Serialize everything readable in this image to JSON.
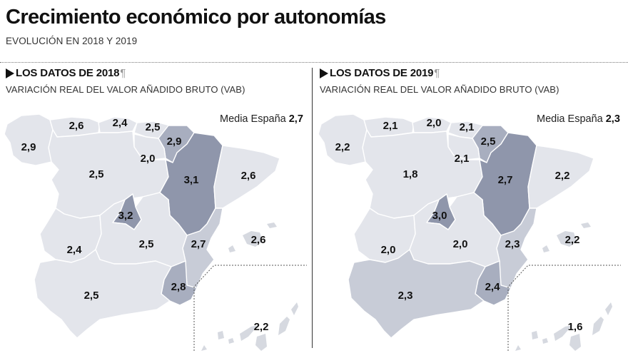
{
  "header": {
    "title": "Crecimiento económico por autonomías",
    "subtitle": "EVOLUCIÓN EN 2018 Y 2019"
  },
  "colors": {
    "shade_1": "#e3e5eb",
    "shade_2": "#c8ccd7",
    "shade_3": "#a8aebf",
    "shade_4": "#8f96ab"
  },
  "panels": [
    {
      "year": "2018",
      "title": "LOS DATOS DE 2018",
      "pilcrow": "¶",
      "subtitle": "VARIACIÓN REAL DEL VALOR AÑADIDO BRUTO (VAB)",
      "media_label": "Media España",
      "media_value": "2,7",
      "regions": {
        "galicia": "2,9",
        "asturias": "2,6",
        "cantabria": "2,4",
        "pais_vasco": "2,5",
        "navarra": "2,9",
        "la_rioja": "2,0",
        "castilla_leon": "2,5",
        "aragon": "3,1",
        "cataluna": "2,6",
        "madrid": "3,2",
        "extremadura": "2,4",
        "castilla_la_mancha": "2,5",
        "valencia": "2,7",
        "baleares": "2,6",
        "andalucia": "2,5",
        "murcia": "2,8",
        "canarias": "2,2"
      }
    },
    {
      "year": "2019",
      "title": "LOS DATOS DE 2019",
      "pilcrow": "¶",
      "subtitle": "VARIACIÓN REAL DEL VALOR AÑADIDO BRUTO (VAB)",
      "media_label": "Media España",
      "media_value": "2,3",
      "regions": {
        "galicia": "2,2",
        "asturias": "2,1",
        "cantabria": "2,0",
        "pais_vasco": "2,1",
        "navarra": "2,5",
        "la_rioja": "2,1",
        "castilla_leon": "1,8",
        "aragon": "2,7",
        "cataluna": "2,2",
        "madrid": "3,0",
        "extremadura": "2,0",
        "castilla_la_mancha": "2,0",
        "valencia": "2,3",
        "baleares": "2,2",
        "andalucia": "2,3",
        "murcia": "2,4",
        "canarias": "1,6"
      }
    }
  ]
}
